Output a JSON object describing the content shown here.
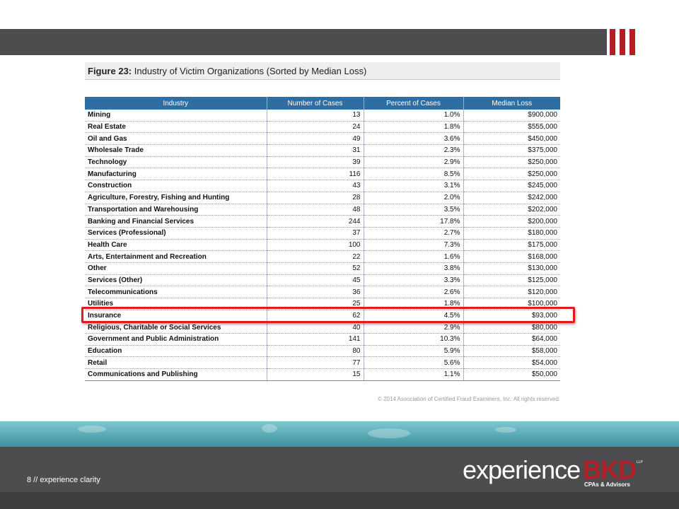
{
  "slide": {
    "figure_label": "Figure 23:",
    "figure_title": "Industry of Victim Organizations (Sorted by Median Loss)",
    "copyright": "© 2014 Association of Certified Fraud Examiners, Inc. All rights reserved.",
    "page_footer": "8 // experience clarity",
    "highlighted_row": "Insurance"
  },
  "logo": {
    "word": "experience",
    "brand": "BKD",
    "suffix": "LLP",
    "tagline": "CPAs & Advisors"
  },
  "colors": {
    "accent_red": "#b21f24",
    "header_blue": "#2f6ea2",
    "highlight_red": "#e31b1b",
    "bar_gray": "#4d4d4f"
  },
  "table": {
    "headers": [
      "Industry",
      "Number of Cases",
      "Percent of Cases",
      "Median Loss"
    ],
    "rows": [
      [
        "Mining",
        "13",
        "1.0%",
        "$900,000"
      ],
      [
        "Real Estate",
        "24",
        "1.8%",
        "$555,000"
      ],
      [
        "Oil and Gas",
        "49",
        "3.6%",
        "$450,000"
      ],
      [
        "Wholesale Trade",
        "31",
        "2.3%",
        "$375,000"
      ],
      [
        "Technology",
        "39",
        "2.9%",
        "$250,000"
      ],
      [
        "Manufacturing",
        "116",
        "8.5%",
        "$250,000"
      ],
      [
        "Construction",
        "43",
        "3.1%",
        "$245,000"
      ],
      [
        "Agriculture, Forestry, Fishing and Hunting",
        "28",
        "2.0%",
        "$242,000"
      ],
      [
        "Transportation and Warehousing",
        "48",
        "3.5%",
        "$202,000"
      ],
      [
        "Banking and Financial Services",
        "244",
        "17.8%",
        "$200,000"
      ],
      [
        "Services (Professional)",
        "37",
        "2.7%",
        "$180,000"
      ],
      [
        "Health Care",
        "100",
        "7.3%",
        "$175,000"
      ],
      [
        "Arts, Entertainment and Recreation",
        "22",
        "1.6%",
        "$168,000"
      ],
      [
        "Other",
        "52",
        "3.8%",
        "$130,000"
      ],
      [
        "Services (Other)",
        "45",
        "3.3%",
        "$125,000"
      ],
      [
        "Telecommunications",
        "36",
        "2.6%",
        "$120,000"
      ],
      [
        "Utilities",
        "25",
        "1.8%",
        "$100,000"
      ],
      [
        "Insurance",
        "62",
        "4.5%",
        "$93,000"
      ],
      [
        "Religious, Charitable or Social Services",
        "40",
        "2.9%",
        "$80,000"
      ],
      [
        "Government and Public Administration",
        "141",
        "10.3%",
        "$64,000"
      ],
      [
        "Education",
        "80",
        "5.9%",
        "$58,000"
      ],
      [
        "Retail",
        "77",
        "5.6%",
        "$54,000"
      ],
      [
        "Communications and Publishing",
        "15",
        "1.1%",
        "$50,000"
      ]
    ]
  }
}
